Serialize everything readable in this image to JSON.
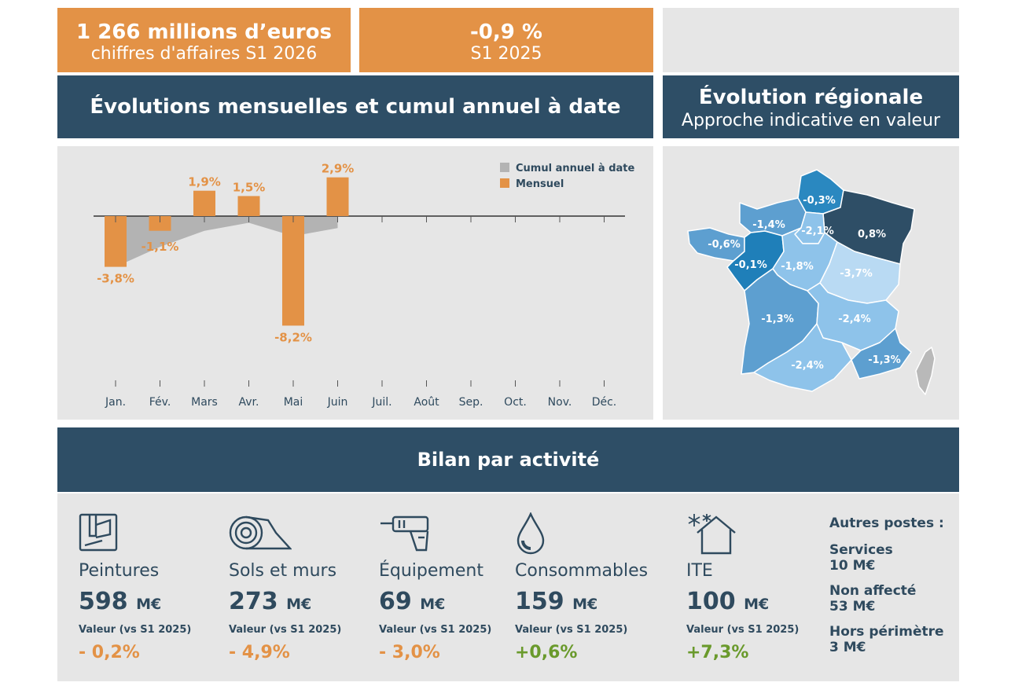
{
  "kpis": [
    {
      "value": "1 266 millions d’euros",
      "label": "chiffres d'affaires S1 2026"
    },
    {
      "value": "-0,9 %",
      "label": "S1 2025"
    }
  ],
  "headers": {
    "monthly_title": "Évolutions mensuelles et cumul annuel à date",
    "regional_title": "Évolution régionale",
    "regional_subtitle": "Approche indicative en valeur",
    "activity_title": "Bilan par activité"
  },
  "colors": {
    "accent_orange": "#e39246",
    "navy": "#2e4e66",
    "cumul_grey": "#b3b3b3",
    "positive_green": "#6a9a2c"
  },
  "chart_data": {
    "type": "bar",
    "categories": [
      "Jan.",
      "Fév.",
      "Mars",
      "Avr.",
      "Mai",
      "Juin",
      "Juil.",
      "Août",
      "Sep.",
      "Oct.",
      "Nov.",
      "Déc."
    ],
    "series": [
      {
        "name": "Mensuel",
        "values": [
          -3.8,
          -1.1,
          1.9,
          1.5,
          -8.2,
          2.9,
          null,
          null,
          null,
          null,
          null,
          null
        ],
        "labels": [
          "-3,8%",
          "-1,1%",
          "1,9%",
          "1,5%",
          "-8,2%",
          "2,9%"
        ]
      },
      {
        "name": "Cumul annuel à date",
        "values": [
          -3.8,
          -2.3,
          -1.1,
          -0.5,
          -1.5,
          -0.9,
          null,
          null,
          null,
          null,
          null,
          null
        ]
      }
    ],
    "legend_position": "top-right",
    "grid": false
  },
  "regions": [
    {
      "id": "nord",
      "value": "-0,3%",
      "color": "#2a88c0"
    },
    {
      "id": "est",
      "value": "0,8%",
      "color": "#2e4e66"
    },
    {
      "id": "normandie",
      "value": "-1,4%",
      "color": "#5d9fd0"
    },
    {
      "id": "idf",
      "value": "-2,1%",
      "color": "#8ec3ea"
    },
    {
      "id": "bretagne",
      "value": "-0,6%",
      "color": "#5d9fd0"
    },
    {
      "id": "pays-loire",
      "value": "-0,1%",
      "color": "#1f7fb9"
    },
    {
      "id": "centre",
      "value": "-1,8%",
      "color": "#8ec3ea"
    },
    {
      "id": "bourgogne",
      "value": "-3,7%",
      "color": "#b9daf3"
    },
    {
      "id": "nouvelle-aquitaine",
      "value": "-1,3%",
      "color": "#5d9fd0"
    },
    {
      "id": "aura",
      "value": "-2,4%",
      "color": "#8ec3ea"
    },
    {
      "id": "occitanie",
      "value": "-2,4%",
      "color": "#8ec3ea"
    },
    {
      "id": "paca",
      "value": "-1,3%",
      "color": "#5d9fd0"
    }
  ],
  "activities": [
    {
      "name": "Peintures",
      "amount": "598",
      "unit": "M€",
      "label": "Valeur (vs S1 2025)",
      "change": "- 0,2%",
      "change_color": "#e39246",
      "icon": "paint-bucket-icon"
    },
    {
      "name": "Sols et murs",
      "amount": "273",
      "unit": "M€",
      "label": "Valeur (vs S1 2025)",
      "change": "- 4,9%",
      "change_color": "#e39246",
      "icon": "floor-roll-icon"
    },
    {
      "name": "Équipement",
      "amount": "69",
      "unit": "M€",
      "label": "Valeur (vs S1 2025)",
      "change": "- 3,0%",
      "change_color": "#e39246",
      "icon": "drill-icon"
    },
    {
      "name": "Consommables",
      "amount": "159",
      "unit": "M€",
      "label": "Valeur (vs S1 2025)",
      "change": "+0,6%",
      "change_color": "#6a9a2c",
      "icon": "drop-icon"
    },
    {
      "name": "ITE",
      "amount": "100",
      "unit": "M€",
      "label": "Valeur (vs S1 2025)",
      "change": "+7,3%",
      "change_color": "#6a9a2c",
      "icon": "house-snow-icon"
    }
  ],
  "other": {
    "title": "Autres postes :",
    "items": [
      {
        "label": "Services",
        "value": "10 M€"
      },
      {
        "label": "Non affecté",
        "value": "53 M€"
      },
      {
        "label": "Hors périmètre",
        "value": "3 M€"
      }
    ]
  }
}
